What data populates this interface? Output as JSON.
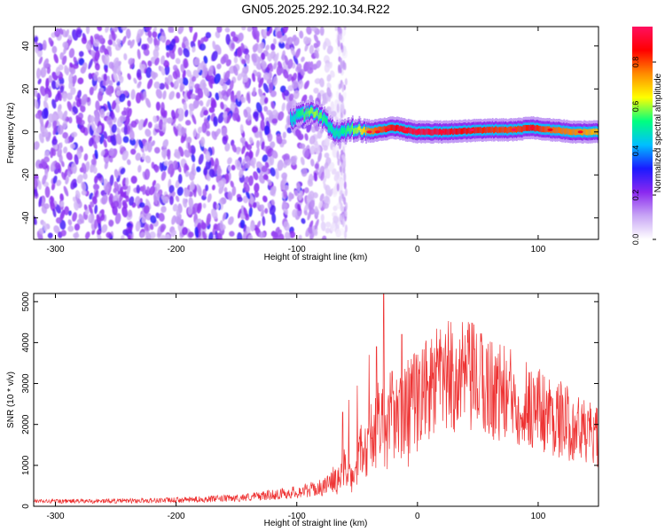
{
  "title": "GN05.2025.292.10.34.R22",
  "chart_data": [
    {
      "type": "heatmap",
      "xlabel": "Height of straight line (km)",
      "ylabel": "Frequency (Hz)",
      "xlim": [
        -318,
        150
      ],
      "ylim": [
        -50,
        49
      ],
      "x_ticks": [
        -300,
        -200,
        -100,
        0,
        100
      ],
      "y_ticks": [
        -40,
        -20,
        0,
        20,
        40
      ],
      "grid": false,
      "colorbar": {
        "label": "Normalized spectral amplitude",
        "range": [
          0,
          0.96
        ],
        "ticks": [
          "0.0",
          "0.2",
          "0.4",
          "0.6",
          "0.8"
        ],
        "colormap": [
          "#ffffff",
          "#c8a6f5",
          "#8a28f0",
          "#1a1aff",
          "#00bfff",
          "#00ff7f",
          "#ffff00",
          "#ff8c00",
          "#ff0000",
          "#ff1060"
        ]
      },
      "noise_region_x": [
        -318,
        -60
      ],
      "ridge": [
        {
          "x": -105,
          "y": 6,
          "v": 0.45
        },
        {
          "x": -95,
          "y": 8,
          "v": 0.55
        },
        {
          "x": -85,
          "y": 9,
          "v": 0.6
        },
        {
          "x": -78,
          "y": 6,
          "v": 0.55
        },
        {
          "x": -72,
          "y": 2,
          "v": 0.5
        },
        {
          "x": -65,
          "y": -1,
          "v": 0.5
        },
        {
          "x": -58,
          "y": 0,
          "v": 0.55
        },
        {
          "x": -50,
          "y": 2,
          "v": 0.6
        },
        {
          "x": -40,
          "y": 0,
          "v": 0.75
        },
        {
          "x": -30,
          "y": 1,
          "v": 0.8
        },
        {
          "x": -20,
          "y": 2,
          "v": 0.85
        },
        {
          "x": -10,
          "y": 1,
          "v": 0.9
        },
        {
          "x": 0,
          "y": 0,
          "v": 0.92
        },
        {
          "x": 20,
          "y": 0,
          "v": 0.9
        },
        {
          "x": 40,
          "y": 0.5,
          "v": 0.85
        },
        {
          "x": 60,
          "y": 1,
          "v": 0.82
        },
        {
          "x": 80,
          "y": 1,
          "v": 0.8
        },
        {
          "x": 95,
          "y": 2,
          "v": 0.85
        },
        {
          "x": 110,
          "y": 1,
          "v": 0.78
        },
        {
          "x": 130,
          "y": 0,
          "v": 0.75
        },
        {
          "x": 150,
          "y": 0,
          "v": 0.7
        }
      ]
    },
    {
      "type": "line",
      "xlabel": "Height of straight line (km)",
      "ylabel": "SNR (10 * v/v)",
      "xlim": [
        -318,
        150
      ],
      "ylim": [
        0,
        5200
      ],
      "x_ticks": [
        -300,
        -200,
        -100,
        0,
        100
      ],
      "y_ticks": [
        0,
        1000,
        2000,
        3000,
        4000,
        5000
      ],
      "grid": false,
      "color": "#ee3333",
      "envelope": [
        {
          "x": -318,
          "y": 120
        },
        {
          "x": -250,
          "y": 130
        },
        {
          "x": -200,
          "y": 150
        },
        {
          "x": -150,
          "y": 200
        },
        {
          "x": -120,
          "y": 280
        },
        {
          "x": -100,
          "y": 350
        },
        {
          "x": -80,
          "y": 450
        },
        {
          "x": -70,
          "y": 600
        },
        {
          "x": -60,
          "y": 900
        },
        {
          "x": -55,
          "y": 700
        },
        {
          "x": -50,
          "y": 1100
        },
        {
          "x": -45,
          "y": 1400
        },
        {
          "x": -40,
          "y": 1600
        },
        {
          "x": -35,
          "y": 1800
        },
        {
          "x": -30,
          "y": 2000
        },
        {
          "x": -20,
          "y": 2100
        },
        {
          "x": -10,
          "y": 2300
        },
        {
          "x": 0,
          "y": 2600
        },
        {
          "x": 10,
          "y": 2900
        },
        {
          "x": 20,
          "y": 3100
        },
        {
          "x": 30,
          "y": 3150
        },
        {
          "x": 45,
          "y": 3100
        },
        {
          "x": 60,
          "y": 2900
        },
        {
          "x": 80,
          "y": 2650
        },
        {
          "x": 100,
          "y": 2400
        },
        {
          "x": 120,
          "y": 2100
        },
        {
          "x": 140,
          "y": 1800
        },
        {
          "x": 150,
          "y": 1650
        }
      ],
      "peaks": [
        {
          "x": -62,
          "y": 2300
        },
        {
          "x": -57,
          "y": 2600
        },
        {
          "x": -50,
          "y": 2950
        },
        {
          "x": -40,
          "y": 3700
        },
        {
          "x": -34,
          "y": 3900
        },
        {
          "x": -28,
          "y": 5200
        },
        {
          "x": -21,
          "y": 3300
        },
        {
          "x": -13,
          "y": 4200
        },
        {
          "x": -5,
          "y": 3600
        },
        {
          "x": 18,
          "y": 3800
        },
        {
          "x": 32,
          "y": 3850
        },
        {
          "x": 40,
          "y": 3700
        }
      ]
    }
  ]
}
